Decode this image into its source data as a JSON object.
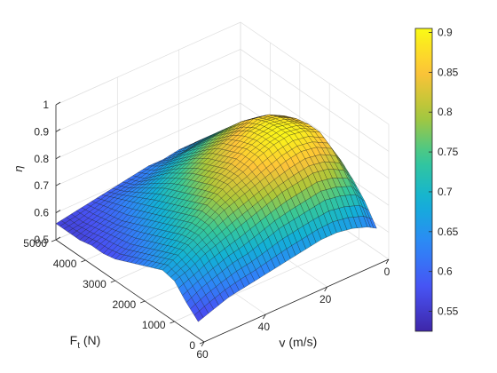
{
  "chart_data": {
    "type": "surface",
    "title": "",
    "xlabel": "v (m/s)",
    "ylabel": "F_t (N)",
    "ylabel_main": "F",
    "ylabel_sub": "t",
    "ylabel_unit": " (N)",
    "zlabel": "η",
    "x_ticks": [
      0,
      20,
      40,
      60
    ],
    "y_ticks": [
      0,
      1000,
      2000,
      3000,
      4000,
      5000
    ],
    "z_ticks": [
      0.5,
      0.6,
      0.7,
      0.8,
      0.9,
      1
    ],
    "x_tick_labels": [
      "0",
      "20",
      "40",
      "60"
    ],
    "y_tick_labels": [
      "0",
      "1000",
      "2000",
      "3000",
      "4000",
      "5000"
    ],
    "z_tick_labels": [
      "0.5",
      "0.6",
      "0.7",
      "0.8",
      "0.9",
      "1"
    ],
    "xlim": [
      0,
      60
    ],
    "ylim": [
      0,
      5000
    ],
    "zlim": [
      0.5,
      1
    ],
    "grid": true,
    "colormap": "parula",
    "colorbar": {
      "limits": [
        0.525,
        0.905
      ],
      "ticks": [
        0.55,
        0.6,
        0.65,
        0.7,
        0.75,
        0.8,
        0.85,
        0.9
      ],
      "tick_labels": [
        "0.55",
        "0.6",
        "0.65",
        "0.7",
        "0.75",
        "0.8",
        "0.85",
        "0.9"
      ],
      "placement": "right"
    },
    "surface_grid": {
      "v": [
        60,
        55,
        50,
        45,
        40,
        35,
        30,
        25,
        20,
        15,
        10,
        5,
        2
      ],
      "F_t": [
        200,
        600,
        1000,
        1400,
        1800,
        2200,
        2600,
        3000,
        3400,
        3800,
        4200,
        4600,
        5000
      ],
      "eta": [
        [
          0.56,
          0.6,
          0.65,
          0.66,
          0.64,
          0.62,
          0.6,
          0.58,
          0.57,
          0.57,
          0.56,
          0.56,
          0.56
        ],
        [
          0.58,
          0.63,
          0.67,
          0.69,
          0.67,
          0.65,
          0.63,
          0.61,
          0.6,
          0.59,
          0.58,
          0.57,
          0.57
        ],
        [
          0.6,
          0.65,
          0.7,
          0.72,
          0.71,
          0.69,
          0.67,
          0.65,
          0.63,
          0.61,
          0.6,
          0.59,
          0.58
        ],
        [
          0.61,
          0.67,
          0.72,
          0.75,
          0.75,
          0.73,
          0.71,
          0.69,
          0.67,
          0.65,
          0.63,
          0.61,
          0.59
        ],
        [
          0.62,
          0.68,
          0.74,
          0.78,
          0.79,
          0.77,
          0.75,
          0.73,
          0.71,
          0.68,
          0.65,
          0.62,
          0.6
        ],
        [
          0.63,
          0.7,
          0.76,
          0.8,
          0.82,
          0.81,
          0.79,
          0.77,
          0.74,
          0.71,
          0.67,
          0.63,
          0.61
        ],
        [
          0.64,
          0.72,
          0.78,
          0.82,
          0.84,
          0.84,
          0.82,
          0.8,
          0.77,
          0.73,
          0.69,
          0.65,
          0.62
        ],
        [
          0.65,
          0.73,
          0.8,
          0.84,
          0.87,
          0.87,
          0.85,
          0.83,
          0.79,
          0.75,
          0.71,
          0.66,
          0.62
        ],
        [
          0.66,
          0.74,
          0.81,
          0.86,
          0.89,
          0.89,
          0.88,
          0.85,
          0.81,
          0.77,
          0.72,
          0.67,
          0.63
        ],
        [
          0.66,
          0.75,
          0.82,
          0.87,
          0.9,
          0.9,
          0.89,
          0.87,
          0.83,
          0.78,
          0.73,
          0.68,
          0.63
        ],
        [
          0.65,
          0.74,
          0.81,
          0.86,
          0.89,
          0.89,
          0.88,
          0.86,
          0.82,
          0.77,
          0.72,
          0.67,
          0.63
        ],
        [
          0.63,
          0.72,
          0.78,
          0.83,
          0.86,
          0.86,
          0.85,
          0.83,
          0.79,
          0.74,
          0.69,
          0.65,
          0.62
        ],
        [
          0.61,
          0.68,
          0.73,
          0.77,
          0.79,
          0.8,
          0.79,
          0.77,
          0.74,
          0.7,
          0.66,
          0.62,
          0.6
        ]
      ]
    }
  }
}
